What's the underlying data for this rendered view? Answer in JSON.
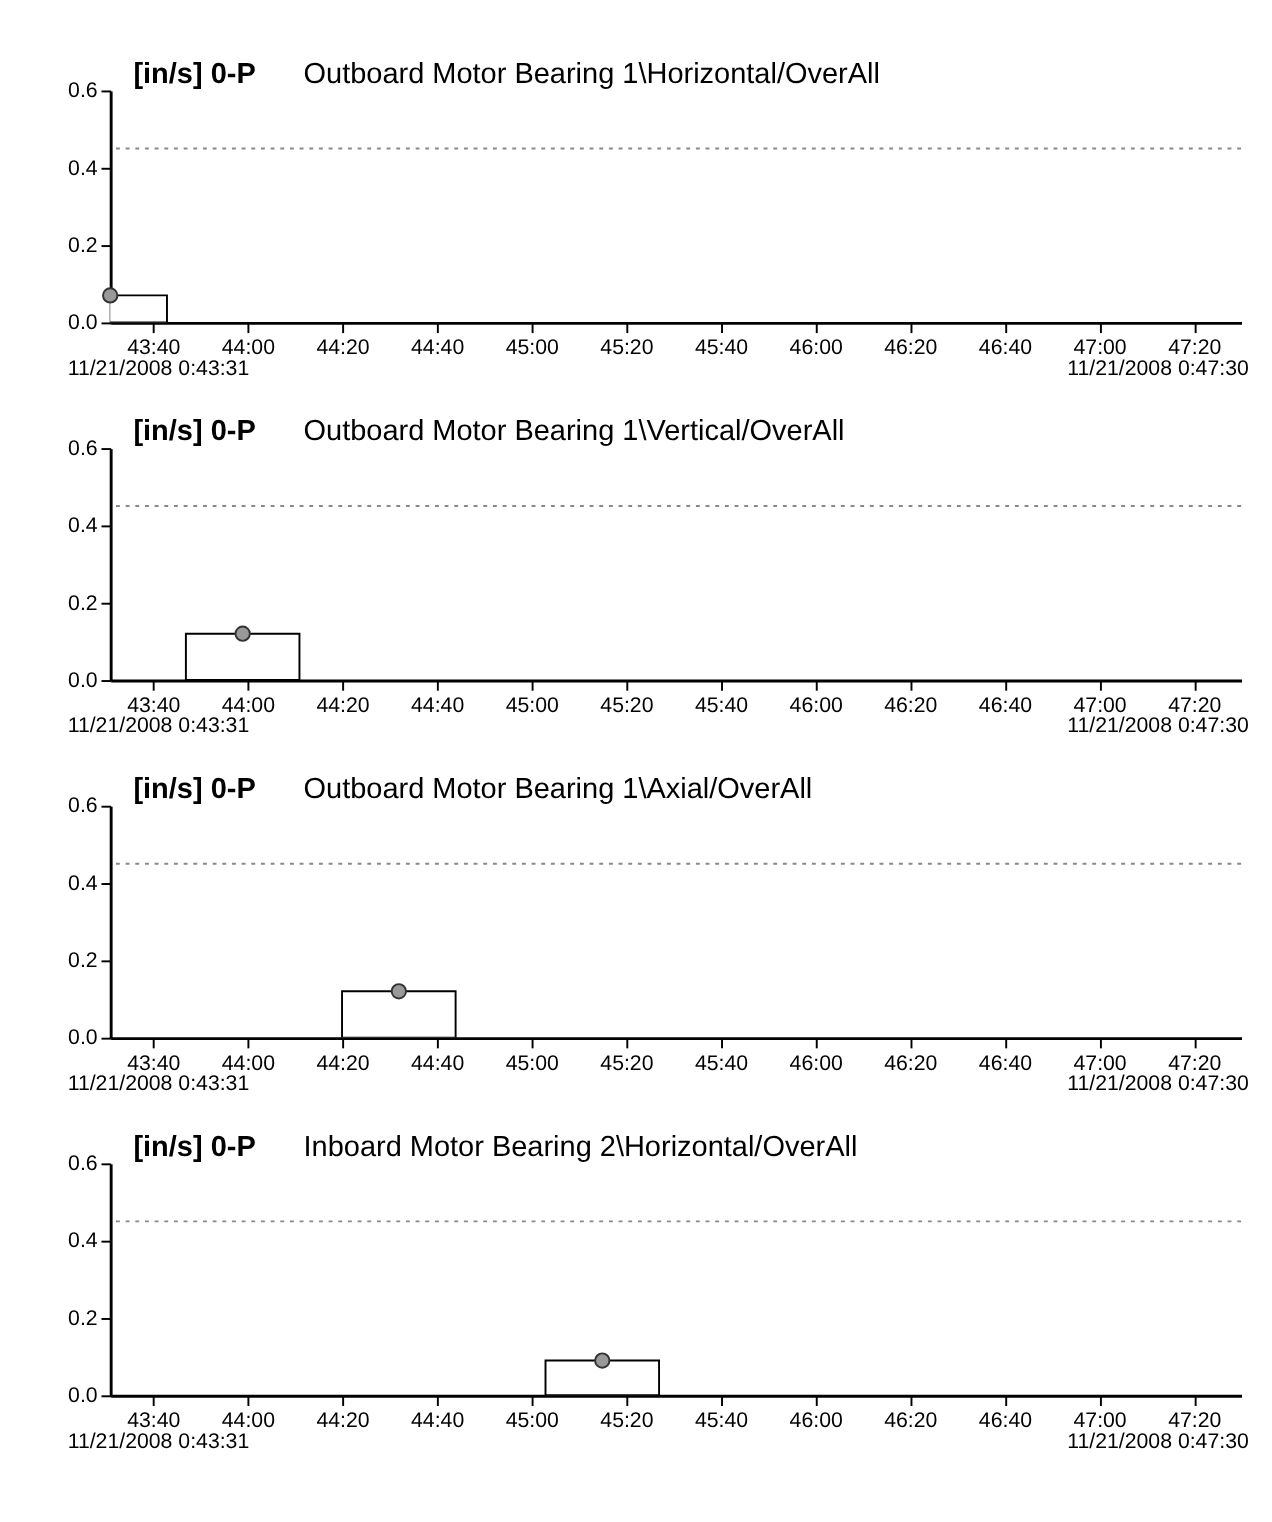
{
  "chart_data": [
    {
      "type": "bar",
      "ylabel": "[in/s] 0-P",
      "title": "Outboard Motor Bearing 1\\Horizontal/OverAll",
      "x": [
        "2008-11-21T00:43:31"
      ],
      "series": [
        {
          "type": "bar",
          "color": "#ffffff",
          "values": [
            0.07
          ]
        },
        {
          "type": "scatter",
          "color": "#999999",
          "marker": "circle",
          "values": [
            0.07
          ]
        }
      ],
      "xlim": [
        "2008-11-21T00:43:31",
        "2008-11-21T00:47:30"
      ],
      "xticks": [
        {
          "value": "2008-11-21T00:43:40",
          "label": "43:40"
        },
        {
          "value": "2008-11-21T00:44:00",
          "label": "44:00"
        },
        {
          "value": "2008-11-21T00:44:20",
          "label": "44:20"
        },
        {
          "value": "2008-11-21T00:44:40",
          "label": "44:40"
        },
        {
          "value": "2008-11-21T00:45:00",
          "label": "45:00"
        },
        {
          "value": "2008-11-21T00:45:20",
          "label": "45:20"
        },
        {
          "value": "2008-11-21T00:45:40",
          "label": "45:40"
        },
        {
          "value": "2008-11-21T00:46:00",
          "label": "46:00"
        },
        {
          "value": "2008-11-21T00:46:20",
          "label": "46:20"
        },
        {
          "value": "2008-11-21T00:46:40",
          "label": "46:40"
        },
        {
          "value": "2008-11-21T00:47:00",
          "label": "47:00"
        },
        {
          "value": "2008-11-21T00:47:20",
          "label": "47:20"
        }
      ],
      "ylim": [
        0,
        0.6
      ],
      "yticks": [
        {
          "value": 0,
          "label": "0.0"
        },
        {
          "value": 0.2,
          "label": "0.2"
        },
        {
          "value": 0.4,
          "label": "0.4"
        },
        {
          "value": 0.6,
          "label": "0.6"
        }
      ],
      "ref_lines": [
        {
          "axis": "y",
          "value": 0.45,
          "color": "#888888",
          "line_style": "dotted"
        }
      ],
      "annotations": [
        "11/21/2008 0:43:31",
        "11/21/2008 0:47:30"
      ],
      "grid": false
    },
    {
      "type": "bar",
      "ylabel": "[in/s] 0-P",
      "title": "Outboard Motor Bearing 1\\Vertical/OverAll",
      "x": [
        "2008-11-21T00:43:59"
      ],
      "series": [
        {
          "type": "bar",
          "color": "#ffffff",
          "values": [
            0.12
          ]
        },
        {
          "type": "scatter",
          "color": "#999999",
          "marker": "circle",
          "values": [
            0.12
          ]
        }
      ],
      "xlim": [
        "2008-11-21T00:43:31",
        "2008-11-21T00:47:30"
      ],
      "xticks": [
        {
          "value": "2008-11-21T00:43:40",
          "label": "43:40"
        },
        {
          "value": "2008-11-21T00:44:00",
          "label": "44:00"
        },
        {
          "value": "2008-11-21T00:44:20",
          "label": "44:20"
        },
        {
          "value": "2008-11-21T00:44:40",
          "label": "44:40"
        },
        {
          "value": "2008-11-21T00:45:00",
          "label": "45:00"
        },
        {
          "value": "2008-11-21T00:45:20",
          "label": "45:20"
        },
        {
          "value": "2008-11-21T00:45:40",
          "label": "45:40"
        },
        {
          "value": "2008-11-21T00:46:00",
          "label": "46:00"
        },
        {
          "value": "2008-11-21T00:46:20",
          "label": "46:20"
        },
        {
          "value": "2008-11-21T00:46:40",
          "label": "46:40"
        },
        {
          "value": "2008-11-21T00:47:00",
          "label": "47:00"
        },
        {
          "value": "2008-11-21T00:47:20",
          "label": "47:20"
        }
      ],
      "ylim": [
        0,
        0.6
      ],
      "yticks": [
        {
          "value": 0,
          "label": "0.0"
        },
        {
          "value": 0.2,
          "label": "0.2"
        },
        {
          "value": 0.4,
          "label": "0.4"
        },
        {
          "value": 0.6,
          "label": "0.6"
        }
      ],
      "ref_lines": [
        {
          "axis": "y",
          "value": 0.45,
          "color": "#888888",
          "line_style": "dotted"
        }
      ],
      "annotations": [
        "11/21/2008 0:43:31",
        "11/21/2008 0:47:30"
      ],
      "grid": false
    },
    {
      "type": "bar",
      "ylabel": "[in/s] 0-P",
      "title": "Outboard Motor Bearing 1\\Axial/OverAll",
      "x": [
        "2008-11-21T00:44:32"
      ],
      "series": [
        {
          "type": "bar",
          "color": "#ffffff",
          "values": [
            0.12
          ]
        },
        {
          "type": "scatter",
          "color": "#999999",
          "marker": "circle",
          "values": [
            0.12
          ]
        }
      ],
      "xlim": [
        "2008-11-21T00:43:31",
        "2008-11-21T00:47:30"
      ],
      "xticks": [
        {
          "value": "2008-11-21T00:43:40",
          "label": "43:40"
        },
        {
          "value": "2008-11-21T00:44:00",
          "label": "44:00"
        },
        {
          "value": "2008-11-21T00:44:20",
          "label": "44:20"
        },
        {
          "value": "2008-11-21T00:44:40",
          "label": "44:40"
        },
        {
          "value": "2008-11-21T00:45:00",
          "label": "45:00"
        },
        {
          "value": "2008-11-21T00:45:20",
          "label": "45:20"
        },
        {
          "value": "2008-11-21T00:45:40",
          "label": "45:40"
        },
        {
          "value": "2008-11-21T00:46:00",
          "label": "46:00"
        },
        {
          "value": "2008-11-21T00:46:20",
          "label": "46:20"
        },
        {
          "value": "2008-11-21T00:46:40",
          "label": "46:40"
        },
        {
          "value": "2008-11-21T00:47:00",
          "label": "47:00"
        },
        {
          "value": "2008-11-21T00:47:20",
          "label": "47:20"
        }
      ],
      "ylim": [
        0,
        0.6
      ],
      "yticks": [
        {
          "value": 0,
          "label": "0.0"
        },
        {
          "value": 0.2,
          "label": "0.2"
        },
        {
          "value": 0.4,
          "label": "0.4"
        },
        {
          "value": 0.6,
          "label": "0.6"
        }
      ],
      "ref_lines": [
        {
          "axis": "y",
          "value": 0.45,
          "color": "#888888",
          "line_style": "dotted"
        }
      ],
      "annotations": [
        "11/21/2008 0:43:31",
        "11/21/2008 0:47:30"
      ],
      "grid": false
    },
    {
      "type": "bar",
      "ylabel": "[in/s] 0-P",
      "title": "Inboard Motor Bearing 2\\Horizontal/OverAll",
      "x": [
        "2008-11-21T00:45:15"
      ],
      "series": [
        {
          "type": "bar",
          "color": "#ffffff",
          "values": [
            0.09
          ]
        },
        {
          "type": "scatter",
          "color": "#999999",
          "marker": "circle",
          "values": [
            0.09
          ]
        }
      ],
      "xlim": [
        "2008-11-21T00:43:31",
        "2008-11-21T00:47:30"
      ],
      "xticks": [
        {
          "value": "2008-11-21T00:43:40",
          "label": "43:40"
        },
        {
          "value": "2008-11-21T00:44:00",
          "label": "44:00"
        },
        {
          "value": "2008-11-21T00:44:20",
          "label": "44:20"
        },
        {
          "value": "2008-11-21T00:44:40",
          "label": "44:40"
        },
        {
          "value": "2008-11-21T00:45:00",
          "label": "45:00"
        },
        {
          "value": "2008-11-21T00:45:20",
          "label": "45:20"
        },
        {
          "value": "2008-11-21T00:45:40",
          "label": "45:40"
        },
        {
          "value": "2008-11-21T00:46:00",
          "label": "46:00"
        },
        {
          "value": "2008-11-21T00:46:20",
          "label": "46:20"
        },
        {
          "value": "2008-11-21T00:46:40",
          "label": "46:40"
        },
        {
          "value": "2008-11-21T00:47:00",
          "label": "47:00"
        },
        {
          "value": "2008-11-21T00:47:20",
          "label": "47:20"
        }
      ],
      "ylim": [
        0,
        0.6
      ],
      "yticks": [
        {
          "value": 0,
          "label": "0.0"
        },
        {
          "value": 0.2,
          "label": "0.2"
        },
        {
          "value": 0.4,
          "label": "0.4"
        },
        {
          "value": 0.6,
          "label": "0.6"
        }
      ],
      "ref_lines": [
        {
          "axis": "y",
          "value": 0.45,
          "color": "#888888",
          "line_style": "dotted"
        }
      ],
      "annotations": [
        "11/21/2008 0:43:31",
        "11/21/2008 0:47:30"
      ],
      "grid": false
    }
  ]
}
